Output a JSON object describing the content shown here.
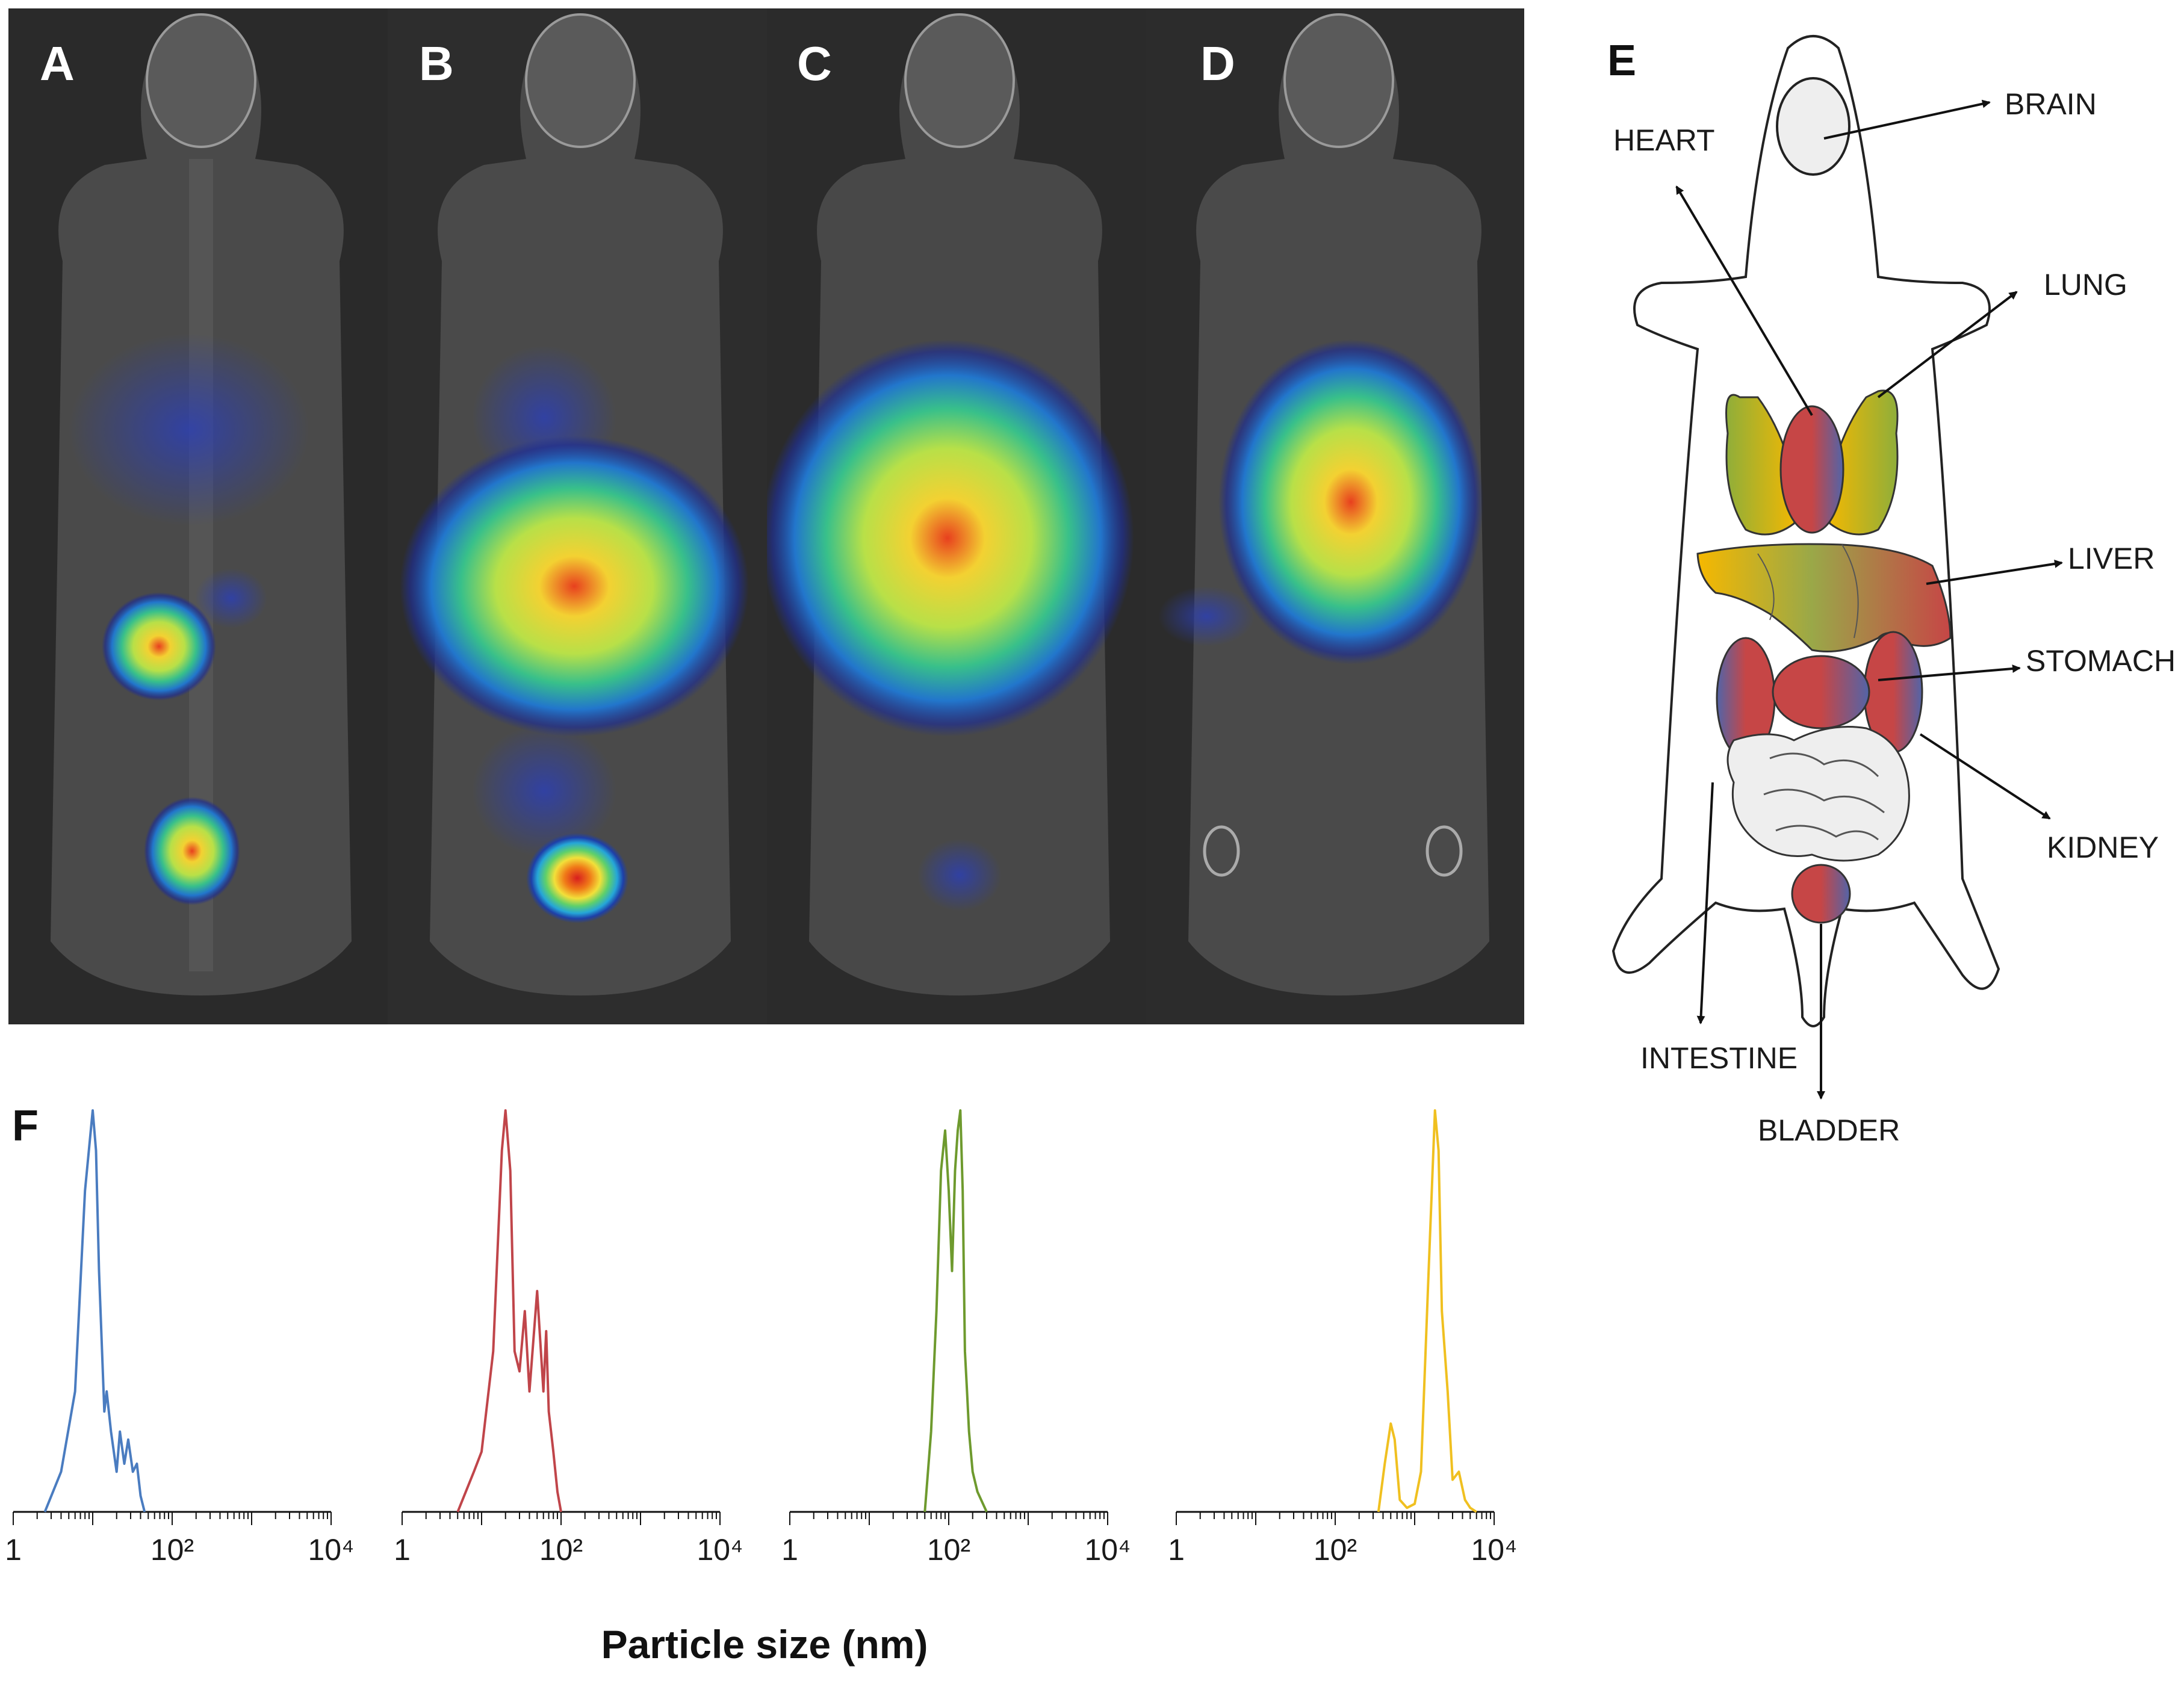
{
  "panels": {
    "scan_letters": [
      "A",
      "B",
      "C",
      "D"
    ],
    "diagram_letter": "E",
    "chart_letter": "F"
  },
  "organ_labels": {
    "brain": "BRAIN",
    "heart": "HEART",
    "lung": "LUNG",
    "liver": "LIVER",
    "stomach": "STOMACH",
    "kidney": "KIDNEY",
    "intestine": "INTESTINE",
    "bladder": "BLADDER"
  },
  "colors": {
    "series_a": "#4a7cc0",
    "series_b": "#c0454a",
    "series_c": "#6e9a2e",
    "series_d": "#f0c020",
    "scan_background": "#2a2a2a"
  },
  "chart_data": [
    {
      "type": "line",
      "xscale": "log",
      "xlim": [
        1,
        10000
      ],
      "tick_labels": [
        "1",
        "10²",
        "10⁴"
      ],
      "series": [
        {
          "x": [
            2.5,
            4,
            6,
            8,
            10,
            11,
            12,
            14,
            15,
            17,
            20,
            22,
            25,
            28,
            32,
            36,
            40,
            45
          ],
          "y": [
            0,
            0.1,
            0.3,
            0.8,
            1.0,
            0.9,
            0.6,
            0.25,
            0.3,
            0.2,
            0.1,
            0.2,
            0.12,
            0.18,
            0.1,
            0.12,
            0.04,
            0
          ]
        }
      ]
    },
    {
      "type": "line",
      "xscale": "log",
      "xlim": [
        1,
        10000
      ],
      "tick_labels": [
        "1",
        "10²",
        "10⁴"
      ],
      "series": [
        {
          "x": [
            5,
            8,
            10,
            14,
            18,
            20,
            23,
            26,
            30,
            35,
            40,
            50,
            60,
            65,
            70,
            80,
            90,
            100
          ],
          "y": [
            0,
            0.1,
            0.15,
            0.4,
            0.9,
            1.0,
            0.85,
            0.4,
            0.35,
            0.5,
            0.3,
            0.55,
            0.3,
            0.45,
            0.25,
            0.15,
            0.05,
            0
          ]
        }
      ]
    },
    {
      "type": "line",
      "xscale": "log",
      "xlim": [
        1,
        10000
      ],
      "tick_labels": [
        "1",
        "10²",
        "10⁴"
      ],
      "series": [
        {
          "x": [
            50,
            60,
            70,
            80,
            90,
            100,
            110,
            120,
            130,
            140,
            150,
            160,
            170,
            180,
            200,
            230,
            270,
            300
          ],
          "y": [
            0,
            0.2,
            0.5,
            0.85,
            0.95,
            0.8,
            0.6,
            0.85,
            0.95,
            1.0,
            0.8,
            0.4,
            0.3,
            0.2,
            0.1,
            0.05,
            0.02,
            0
          ]
        }
      ]
    },
    {
      "type": "line",
      "xscale": "log",
      "xlim": [
        1,
        10000
      ],
      "tick_labels": [
        "1",
        "10²",
        "10⁴"
      ],
      "series": [
        {
          "x": [
            350,
            420,
            500,
            560,
            650,
            800,
            1000,
            1200,
            1500,
            1800,
            2000,
            2200,
            2600,
            3000,
            3600,
            4300,
            5000,
            6000
          ],
          "y": [
            0,
            0.12,
            0.22,
            0.18,
            0.03,
            0.01,
            0.02,
            0.1,
            0.6,
            1.0,
            0.9,
            0.5,
            0.3,
            0.08,
            0.1,
            0.03,
            0.01,
            0
          ]
        }
      ]
    }
  ],
  "chart_xlabel": "Particle size (nm)"
}
